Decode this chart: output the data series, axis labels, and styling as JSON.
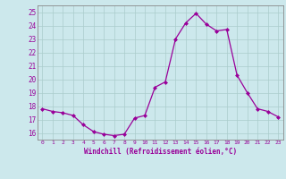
{
  "x": [
    0,
    1,
    2,
    3,
    4,
    5,
    6,
    7,
    8,
    9,
    10,
    11,
    12,
    13,
    14,
    15,
    16,
    17,
    18,
    19,
    20,
    21,
    22,
    23
  ],
  "y": [
    17.8,
    17.6,
    17.5,
    17.3,
    16.6,
    16.1,
    15.9,
    15.8,
    15.9,
    17.1,
    17.3,
    19.4,
    19.8,
    23.0,
    24.2,
    24.9,
    24.1,
    23.6,
    23.7,
    20.3,
    19.0,
    17.8,
    17.6,
    17.2
  ],
  "line_color": "#990099",
  "marker": "D",
  "marker_size": 2,
  "bg_color": "#cce8ec",
  "grid_color": "#aacccc",
  "xlabel": "Windchill (Refroidissement éolien,°C)",
  "xlabel_color": "#990099",
  "tick_color": "#990099",
  "ylim": [
    15.5,
    25.5
  ],
  "yticks": [
    16,
    17,
    18,
    19,
    20,
    21,
    22,
    23,
    24,
    25
  ],
  "xticks": [
    0,
    1,
    2,
    3,
    4,
    5,
    6,
    7,
    8,
    9,
    10,
    11,
    12,
    13,
    14,
    15,
    16,
    17,
    18,
    19,
    20,
    21,
    22,
    23
  ],
  "xlim": [
    -0.5,
    23.5
  ]
}
